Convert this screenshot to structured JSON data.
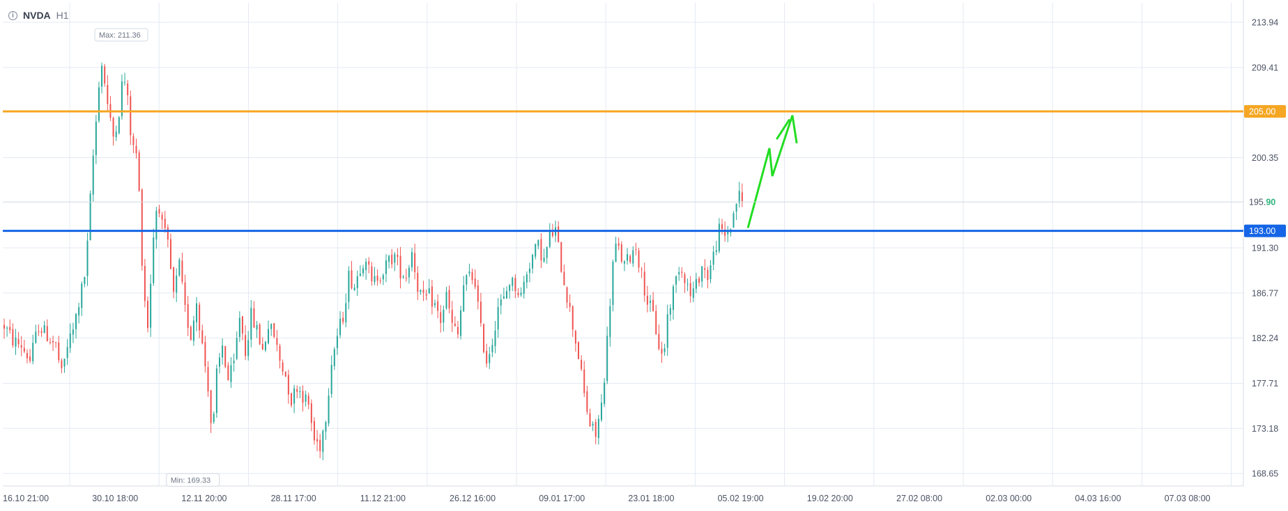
{
  "header": {
    "info_icon": "info-icon",
    "symbol": "NVDA",
    "timeframe": "H1"
  },
  "colors": {
    "grid": "#e3e9f2",
    "up": "#26a69a",
    "down": "#ef5350",
    "resistance": "#f5a623",
    "support": "#1565e6",
    "arrow": "#22dd22",
    "axis_text": "#4a5263",
    "last_price_value": "#2db37a"
  },
  "chart_data": {
    "type": "candlestick",
    "y_axis": {
      "ticks": [
        "213.94",
        "209.41",
        "200.35",
        "191.30",
        "186.77",
        "182.24",
        "177.71",
        "173.18",
        "168.65"
      ],
      "range": [
        167.4,
        215.2
      ]
    },
    "x_axis": {
      "ticks": [
        "16.10 21:00",
        "30.10 18:00",
        "12.11 20:00",
        "28.11 17:00",
        "11.12 21:00",
        "26.12 16:00",
        "09.01 17:00",
        "23.01 18:00",
        "05.02 19:00",
        "19.02 20:00",
        "27.02 08:00",
        "02.03 00:00",
        "04.03 16:00",
        "07.03 08:00"
      ]
    },
    "series_path": [
      [
        0,
        183.5
      ],
      [
        3,
        182.0
      ],
      [
        6,
        181.5
      ],
      [
        9,
        180.0
      ],
      [
        12,
        183.5
      ],
      [
        15,
        182.5
      ],
      [
        18,
        181.5
      ],
      [
        20,
        178.5
      ],
      [
        22,
        181.5
      ],
      [
        24,
        183.0
      ],
      [
        28,
        188.5
      ],
      [
        29,
        191.5
      ],
      [
        30.5,
        198.5
      ],
      [
        31.5,
        202.5
      ],
      [
        32.5,
        205.5
      ],
      [
        33.5,
        210.5
      ],
      [
        35,
        208.0
      ],
      [
        36.5,
        204.5
      ],
      [
        38,
        202.5
      ],
      [
        40,
        205.0
      ],
      [
        41.5,
        209.0
      ],
      [
        43,
        206.0
      ],
      [
        44.5,
        201.5
      ],
      [
        46.5,
        200.5
      ],
      [
        47.5,
        193.0
      ],
      [
        48.5,
        187.5
      ],
      [
        50,
        183.5
      ],
      [
        52,
        192.5
      ],
      [
        53.5,
        196.5
      ],
      [
        55,
        193.5
      ],
      [
        57,
        191.5
      ],
      [
        59,
        186.5
      ],
      [
        61,
        189.5
      ],
      [
        63,
        185.0
      ],
      [
        65,
        182.5
      ],
      [
        67,
        186.0
      ],
      [
        69,
        181.5
      ],
      [
        71,
        177.5
      ],
      [
        72.5,
        172.0
      ],
      [
        74,
        178.5
      ],
      [
        76,
        181.5
      ],
      [
        78,
        178.0
      ],
      [
        80,
        179.5
      ],
      [
        82,
        184.5
      ],
      [
        84,
        181.0
      ],
      [
        86,
        184.5
      ],
      [
        88,
        183.0
      ],
      [
        90,
        181.0
      ],
      [
        92,
        183.5
      ],
      [
        94,
        182.5
      ],
      [
        96,
        180.0
      ],
      [
        98,
        178.5
      ],
      [
        100,
        176.0
      ],
      [
        102,
        177.5
      ],
      [
        104,
        176.5
      ],
      [
        106,
        175.5
      ],
      [
        108,
        172.0
      ],
      [
        110,
        171.5
      ],
      [
        112,
        174.5
      ],
      [
        114,
        180.0
      ],
      [
        116,
        182.5
      ],
      [
        118,
        184.5
      ],
      [
        120,
        188.5
      ],
      [
        122,
        187.5
      ],
      [
        124,
        189.5
      ],
      [
        126,
        190.5
      ],
      [
        128,
        187.5
      ],
      [
        130,
        188.5
      ],
      [
        132,
        189.0
      ],
      [
        134,
        190.0
      ],
      [
        136,
        190.5
      ],
      [
        138,
        189.0
      ],
      [
        140,
        188.5
      ],
      [
        142,
        191.0
      ],
      [
        144,
        187.5
      ],
      [
        146,
        186.0
      ],
      [
        148,
        186.5
      ],
      [
        150,
        185.5
      ],
      [
        152,
        184.0
      ],
      [
        154,
        186.5
      ],
      [
        156,
        183.5
      ],
      [
        158,
        182.5
      ],
      [
        160,
        187.5
      ],
      [
        162,
        188.5
      ],
      [
        164,
        188.0
      ],
      [
        166,
        183.0
      ],
      [
        168,
        180.0
      ],
      [
        170,
        182.0
      ],
      [
        172,
        185.5
      ],
      [
        174,
        186.0
      ],
      [
        176,
        188.0
      ],
      [
        178,
        187.5
      ],
      [
        180,
        186.5
      ],
      [
        182,
        189.0
      ],
      [
        184,
        190.5
      ],
      [
        186,
        191.5
      ],
      [
        188,
        190.0
      ],
      [
        190,
        192.5
      ],
      [
        192,
        193.0
      ],
      [
        194,
        189.5
      ],
      [
        196,
        186.5
      ],
      [
        198,
        183.5
      ],
      [
        200,
        180.5
      ],
      [
        202,
        176.5
      ],
      [
        204,
        173.5
      ],
      [
        206,
        172.5
      ],
      [
        208,
        175.5
      ],
      [
        209.5,
        180.0
      ],
      [
        211,
        186.0
      ],
      [
        212.5,
        191.5
      ],
      [
        214,
        191.0
      ],
      [
        216,
        189.5
      ],
      [
        218,
        190.5
      ],
      [
        220,
        191.5
      ],
      [
        222,
        188.5
      ],
      [
        224,
        186.0
      ],
      [
        226,
        184.5
      ],
      [
        228,
        181.5
      ],
      [
        229.5,
        180.0
      ],
      [
        231,
        184.5
      ],
      [
        233,
        187.0
      ],
      [
        235,
        189.5
      ],
      [
        237,
        188.5
      ],
      [
        239,
        186.5
      ],
      [
        241,
        187.5
      ],
      [
        243,
        189.5
      ],
      [
        245,
        188.5
      ],
      [
        247,
        190.5
      ],
      [
        249,
        193.0
      ],
      [
        251,
        192.5
      ],
      [
        253,
        193.5
      ],
      [
        255,
        196.0
      ],
      [
        256,
        196.5
      ],
      [
        257,
        195.9
      ]
    ],
    "levels": [
      {
        "label": "205.00",
        "value": 205.0,
        "kind": "resistance"
      },
      {
        "label": "193.00",
        "value": 193.0,
        "kind": "support"
      }
    ],
    "last_price": {
      "label_prefix": "195.",
      "label_suffix": "90",
      "value": 195.9
    },
    "annotations": {
      "max_label": "Max: 211.36",
      "max_value": 211.36,
      "min_label": "Min: 169.33",
      "min_value": 169.33
    },
    "forecast_arrow": [
      [
        259,
        193.3
      ],
      [
        266.5,
        201.3
      ],
      [
        267.5,
        198.5
      ],
      [
        274.5,
        204.6
      ],
      [
        276,
        201.8
      ]
    ],
    "forecast_arrow_segment": [
      [
        269,
        202.2
      ],
      [
        273.5,
        204.2
      ]
    ],
    "grid": true,
    "legend": "none"
  }
}
